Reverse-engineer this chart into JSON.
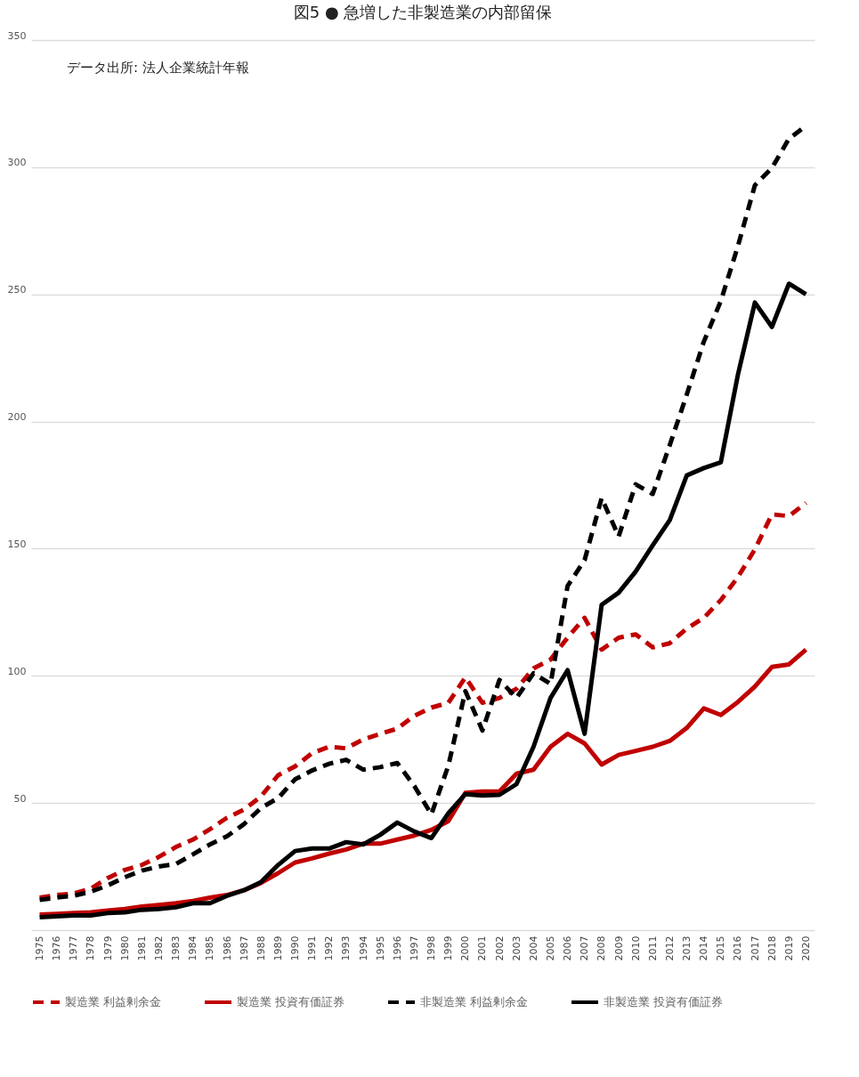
{
  "chart_data": {
    "type": "line",
    "title": "図5 ● 急増した非製造業の内部留保",
    "annotations": [
      "データ出所: 法人企業統計年報"
    ],
    "categories": [
      "1975",
      "1976",
      "1977",
      "1978",
      "1979",
      "1980",
      "1981",
      "1982",
      "1983",
      "1984",
      "1985",
      "1986",
      "1987",
      "1988",
      "1989",
      "1990",
      "1991",
      "1992",
      "1993",
      "1994",
      "1995",
      "1996",
      "1997",
      "1998",
      "1999",
      "2000",
      "2001",
      "2002",
      "2003",
      "2004",
      "2005",
      "2006",
      "2007",
      "2008",
      "2009",
      "2010",
      "2011",
      "2012",
      "2013",
      "2014",
      "2015",
      "2016",
      "2017",
      "2018",
      "2019",
      "2020"
    ],
    "series": [
      {
        "name": "製造業 利益剰余金",
        "color": "#c00000",
        "line_style": "dashed",
        "values": [
          12.8,
          13.8,
          14.4,
          16.3,
          20.5,
          23.7,
          25.6,
          28.8,
          32.7,
          35.6,
          39.7,
          44.2,
          47.4,
          52.6,
          60.9,
          64.4,
          69.6,
          72.1,
          71.5,
          75,
          77.2,
          79.2,
          84.3,
          87.5,
          89.4,
          99.4,
          89.4,
          91.3,
          94.9,
          102.9,
          106.4,
          115,
          122.8,
          110.3,
          115,
          116.3,
          111.2,
          112.8,
          118.6,
          122.8,
          129.8,
          138.8,
          149.7,
          163.5,
          162.8,
          168
        ]
      },
      {
        "name": "製造業 投資有価証券",
        "color": "#c00000",
        "line_style": "solid",
        "values": [
          6.1,
          6.4,
          6.7,
          7,
          7.7,
          8.3,
          9.3,
          9.9,
          10.6,
          11.5,
          12.8,
          13.8,
          15.7,
          18.6,
          22.4,
          26.6,
          28.2,
          30.1,
          31.7,
          34,
          34,
          35.6,
          37.2,
          39.4,
          42.9,
          54,
          54.5,
          54.5,
          61.5,
          63.1,
          72.1,
          77.2,
          73.4,
          65.1,
          68.9,
          70.5,
          72.1,
          74.4,
          79.5,
          87.2,
          84.6,
          89.7,
          95.8,
          103.5,
          104.5,
          110.3
        ]
      },
      {
        "name": "非製造業 利益剰余金",
        "color": "#000000",
        "line_style": "dashed",
        "values": [
          11.9,
          12.8,
          13.5,
          15.1,
          17.6,
          20.8,
          23.4,
          25,
          26,
          29.8,
          33.7,
          36.9,
          41.7,
          48.1,
          51.9,
          59.3,
          62.8,
          65.4,
          67,
          63.1,
          64.1,
          65.7,
          56.7,
          45.5,
          64.7,
          94,
          78.5,
          98.4,
          91.3,
          101,
          96.8,
          135.3,
          145.5,
          169.9,
          154.8,
          175.3,
          171.5,
          190.7,
          210.6,
          231.4,
          247.4,
          268.9,
          292.9,
          299.7,
          311.2,
          316.3
        ]
      },
      {
        "name": "非製造業 投資有価証券",
        "color": "#000000",
        "line_style": "solid",
        "values": [
          5.1,
          5.4,
          5.8,
          5.8,
          6.7,
          7,
          8,
          8.3,
          9,
          10.6,
          10.6,
          13.5,
          15.7,
          18.9,
          25.6,
          31.1,
          32.1,
          32.1,
          34.6,
          33.7,
          37.5,
          42.3,
          38.8,
          36.2,
          46,
          53.5,
          52.9,
          53.2,
          57.4,
          72.1,
          91.3,
          102.2,
          77.2,
          127.9,
          132.7,
          141,
          151.3,
          161.2,
          178.8,
          181.7,
          184,
          218.3,
          246.8,
          237.2,
          254.2,
          250
        ]
      }
    ],
    "ylim": [
      0,
      350
    ],
    "yticks": [
      {
        "value": 0,
        "label": null
      },
      50,
      100,
      150,
      200,
      250,
      300,
      350
    ],
    "grid": "y",
    "legend": "bottom"
  }
}
